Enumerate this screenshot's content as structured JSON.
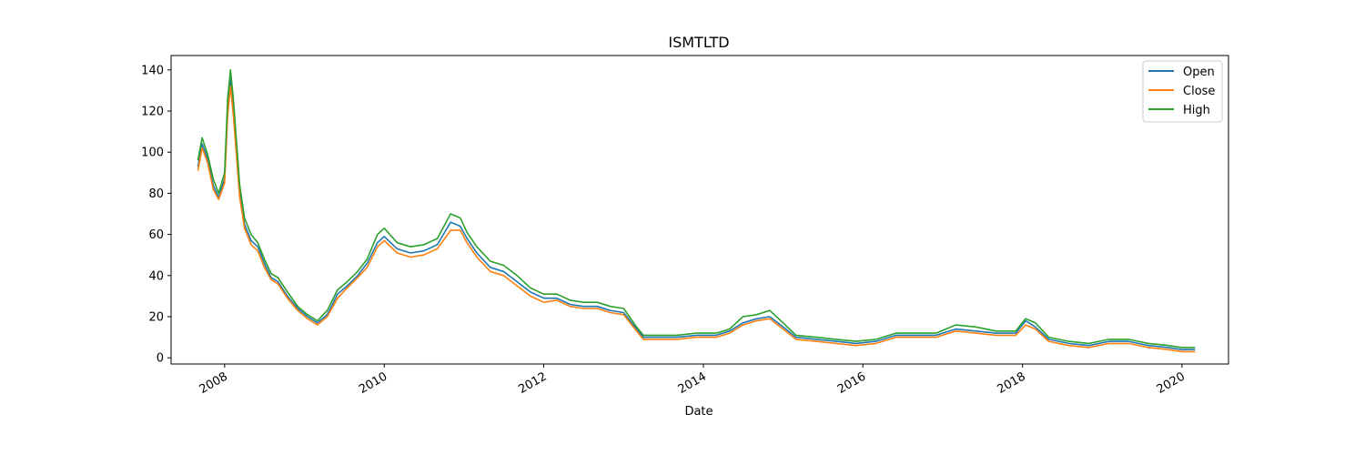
{
  "chart_data": {
    "type": "line",
    "title": "ISMTLTD",
    "xlabel": "Date",
    "ylabel": "",
    "xlim": [
      "2007-05-01",
      "2020-08-01"
    ],
    "ylim": [
      -3,
      147
    ],
    "x_ticks": [
      "2008",
      "2010",
      "2012",
      "2014",
      "2016",
      "2018",
      "2020"
    ],
    "y_ticks": [
      0,
      20,
      40,
      60,
      80,
      100,
      120,
      140
    ],
    "grid": false,
    "legend": "top-right",
    "colors": {
      "Open": "#1f77b4",
      "Close": "#ff7f0e",
      "High": "#2ca02c"
    },
    "x": [
      "2007-09-01",
      "2007-09-20",
      "2007-10-15",
      "2007-11-10",
      "2007-12-05",
      "2008-01-01",
      "2008-01-15",
      "2008-01-28",
      "2008-02-10",
      "2008-03-10",
      "2008-04-01",
      "2008-05-01",
      "2008-06-01",
      "2008-07-01",
      "2008-08-01",
      "2008-09-01",
      "2008-10-15",
      "2008-12-01",
      "2009-01-15",
      "2009-03-01",
      "2009-04-15",
      "2009-06-01",
      "2009-07-15",
      "2009-09-01",
      "2009-10-15",
      "2009-12-01",
      "2010-01-01",
      "2010-03-01",
      "2010-05-01",
      "2010-07-01",
      "2010-09-01",
      "2010-11-01",
      "2010-12-15",
      "2011-01-15",
      "2011-03-01",
      "2011-05-01",
      "2011-07-01",
      "2011-09-01",
      "2011-11-01",
      "2012-01-01",
      "2012-03-01",
      "2012-05-01",
      "2012-07-01",
      "2012-09-01",
      "2012-11-01",
      "2013-01-01",
      "2013-03-01",
      "2013-04-01",
      "2013-06-01",
      "2013-09-01",
      "2013-12-01",
      "2014-03-01",
      "2014-05-01",
      "2014-07-01",
      "2014-09-01",
      "2014-11-01",
      "2015-01-01",
      "2015-03-01",
      "2015-06-01",
      "2015-09-01",
      "2015-12-01",
      "2016-03-01",
      "2016-06-01",
      "2016-09-01",
      "2016-12-01",
      "2017-03-01",
      "2017-06-01",
      "2017-09-01",
      "2017-12-01",
      "2018-01-15",
      "2018-03-01",
      "2018-05-01",
      "2018-08-01",
      "2018-11-01",
      "2019-02-01",
      "2019-05-01",
      "2019-08-01",
      "2019-11-01",
      "2020-01-01",
      "2020-03-01"
    ],
    "series": [
      {
        "name": "Open",
        "values": [
          93,
          104,
          97,
          84,
          78,
          87,
          122,
          136,
          122,
          80,
          65,
          57,
          54,
          46,
          39,
          37,
          30,
          24,
          20,
          17,
          21,
          31,
          35,
          40,
          46,
          56,
          59,
          53,
          51,
          52,
          55,
          66,
          64,
          58,
          51,
          44,
          42,
          37,
          32,
          29,
          29,
          26,
          25,
          25,
          23,
          22,
          14,
          10,
          10,
          10,
          11,
          11,
          13,
          17,
          19,
          20,
          15,
          10,
          9,
          8,
          7,
          8,
          11,
          11,
          11,
          14,
          13,
          12,
          12,
          18,
          15,
          9,
          7,
          6,
          8,
          8,
          6,
          5,
          4,
          4
        ]
      },
      {
        "name": "Close",
        "values": [
          91,
          102,
          95,
          82,
          77,
          85,
          118,
          132,
          118,
          78,
          63,
          55,
          52,
          44,
          38,
          36,
          29,
          23,
          19,
          16,
          20,
          29,
          34,
          39,
          44,
          54,
          57,
          51,
          49,
          50,
          53,
          62,
          62,
          56,
          49,
          42,
          40,
          35,
          30,
          27,
          28,
          25,
          24,
          24,
          22,
          21,
          13,
          9,
          9,
          9,
          10,
          10,
          12,
          16,
          18,
          19,
          14,
          9,
          8,
          7,
          6,
          7,
          10,
          10,
          10,
          13,
          12,
          11,
          11,
          16,
          14,
          8,
          6,
          5,
          7,
          7,
          5,
          4,
          3,
          3
        ]
      },
      {
        "name": "High",
        "values": [
          96,
          107,
          99,
          87,
          80,
          90,
          126,
          140,
          126,
          84,
          68,
          60,
          56,
          48,
          41,
          39,
          32,
          25,
          21,
          18,
          23,
          33,
          37,
          42,
          48,
          60,
          63,
          56,
          54,
          55,
          58,
          70,
          68,
          61,
          54,
          47,
          45,
          40,
          34,
          31,
          31,
          28,
          27,
          27,
          25,
          24,
          15,
          11,
          11,
          11,
          12,
          12,
          14,
          20,
          21,
          23,
          17,
          11,
          10,
          9,
          8,
          9,
          12,
          12,
          12,
          16,
          15,
          13,
          13,
          19,
          17,
          10,
          8,
          7,
          9,
          9,
          7,
          6,
          5,
          5
        ]
      }
    ]
  }
}
